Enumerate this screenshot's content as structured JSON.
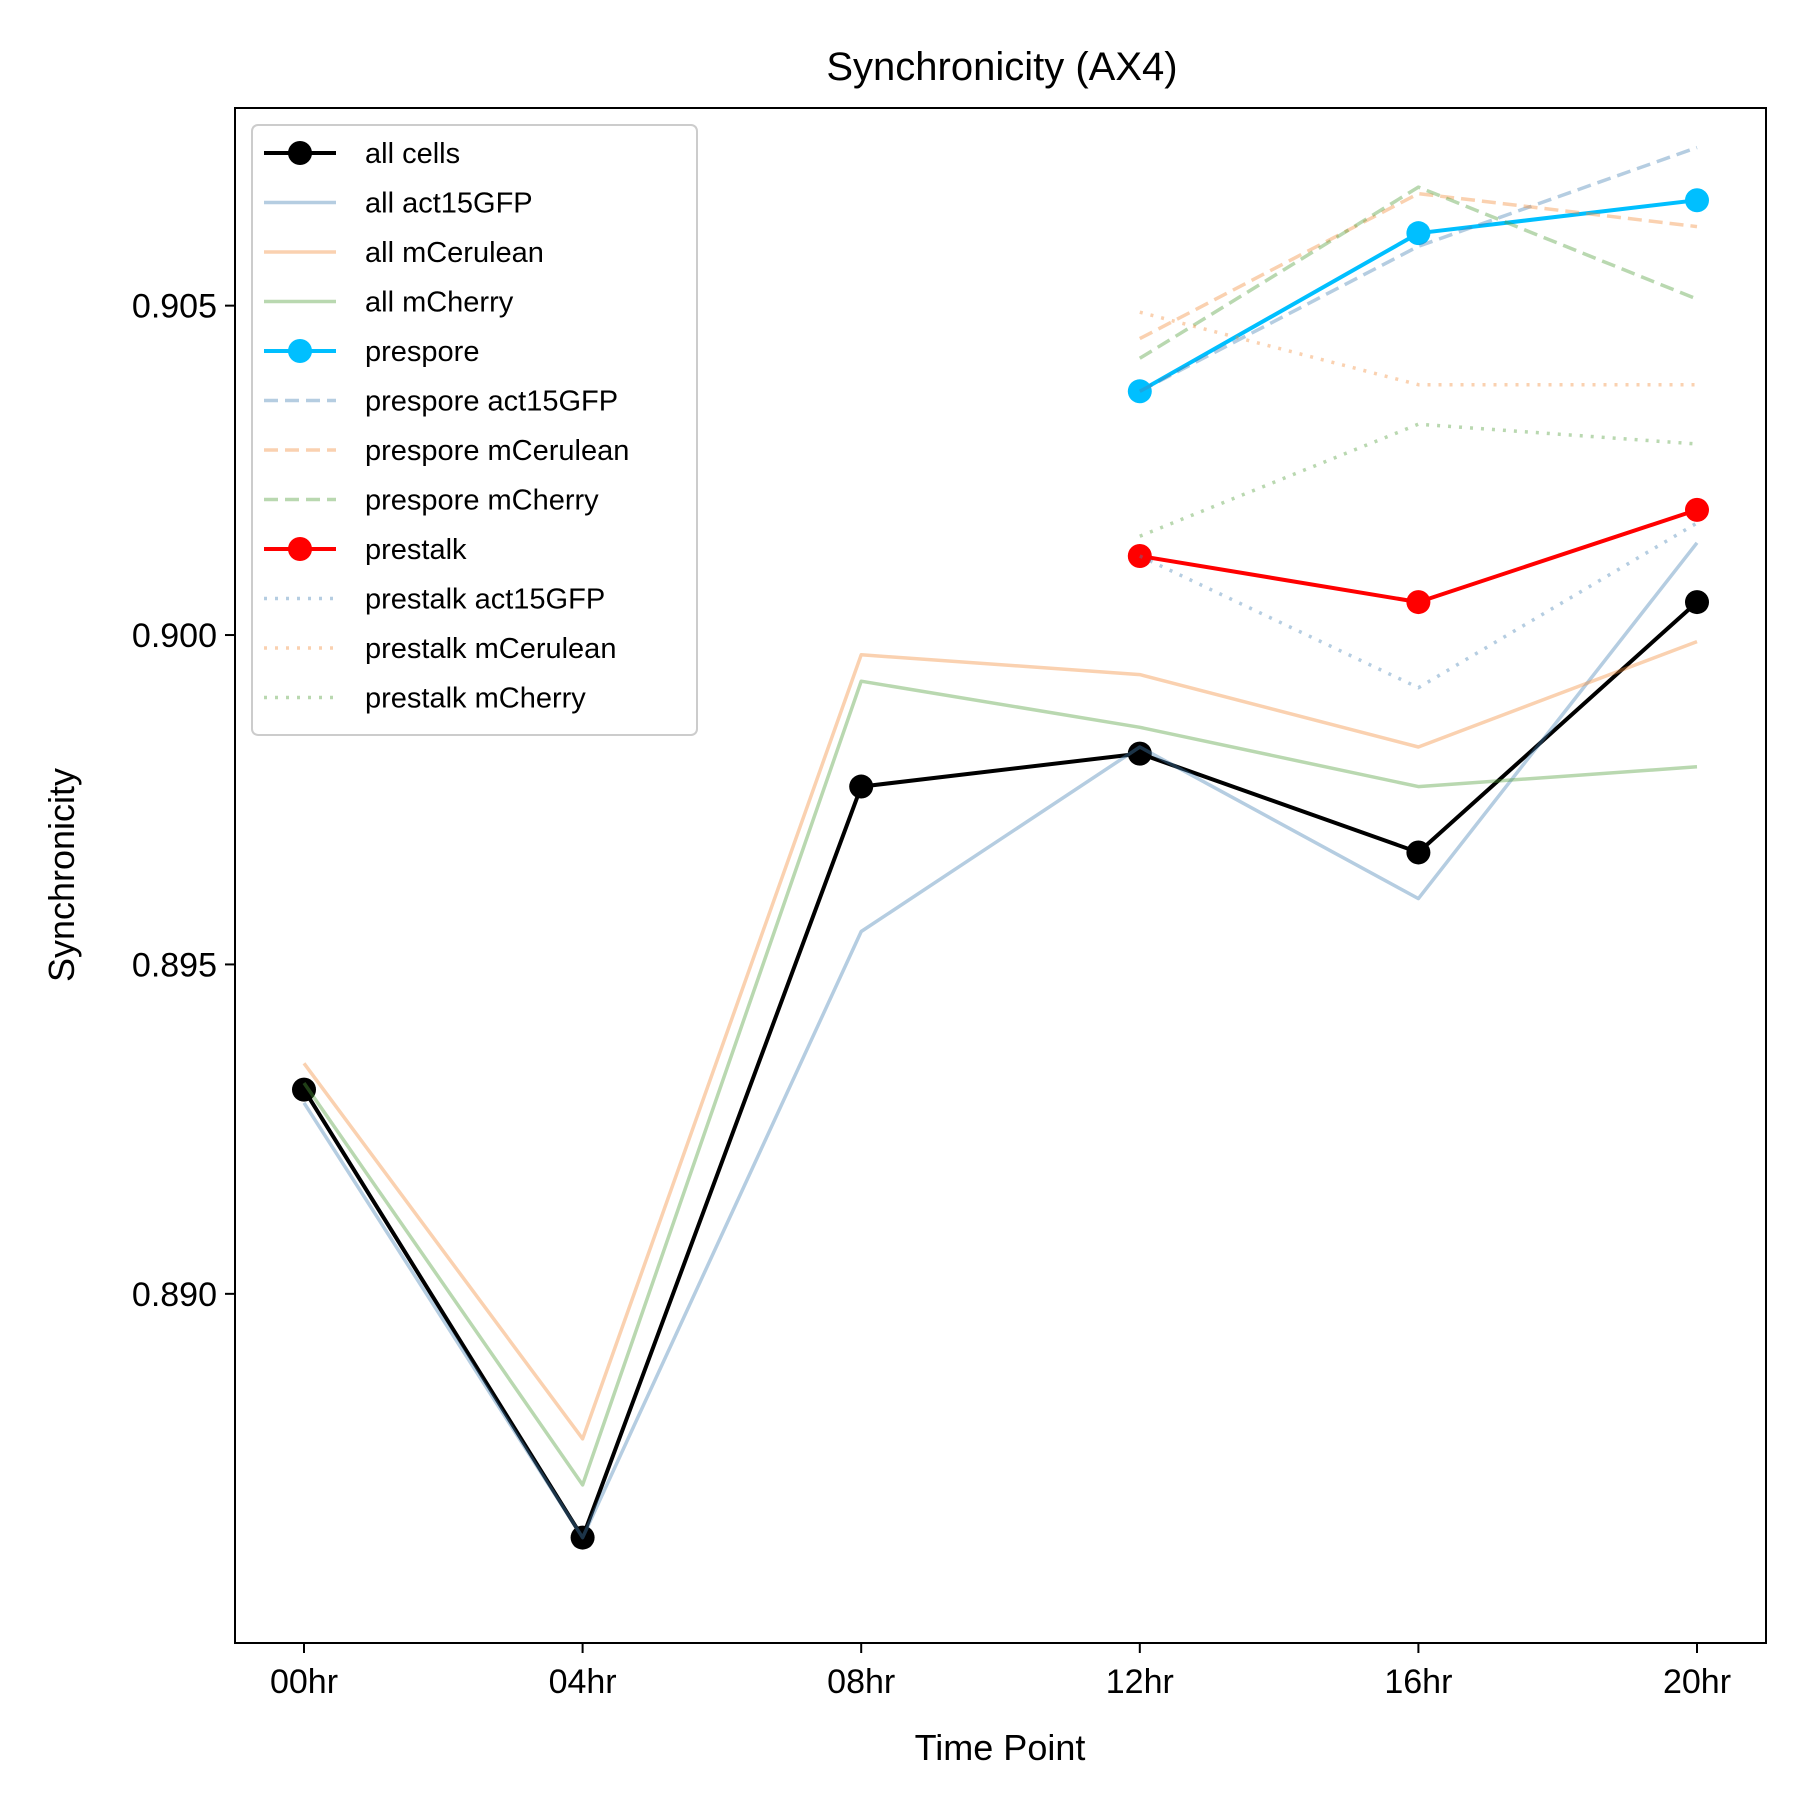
{
  "chart_data": {
    "type": "line",
    "title": "Synchronicity (AX4)",
    "xlabel": "Time Point",
    "ylabel": "Synchronicity",
    "categories": [
      "00hr",
      "04hr",
      "08hr",
      "12hr",
      "16hr",
      "20hr"
    ],
    "ylim": [
      0.8847,
      0.908
    ],
    "yticks": [
      0.89,
      0.895,
      0.9,
      0.905
    ],
    "ytick_labels": [
      "0.890",
      "0.895",
      "0.900",
      "0.905"
    ],
    "grid": false,
    "legend_position": "top-left",
    "series": [
      {
        "name": "all cells",
        "color": "#000000",
        "style": "solid",
        "marker": true,
        "alpha": 1,
        "values": [
          0.8931,
          0.8863,
          0.8977,
          0.8982,
          0.8967,
          0.9005
        ]
      },
      {
        "name": "all act15GFP",
        "color": "#4682b4",
        "style": "solid",
        "marker": false,
        "alpha": 0.4,
        "values": [
          0.8929,
          0.8863,
          0.8955,
          0.8983,
          0.896,
          0.9014
        ]
      },
      {
        "name": "all mCerulean",
        "color": "#f28c3a",
        "style": "solid",
        "marker": false,
        "alpha": 0.4,
        "values": [
          0.8935,
          0.8878,
          0.8997,
          0.8994,
          0.8983,
          0.8999
        ]
      },
      {
        "name": "all mCherry",
        "color": "#4f9e3a",
        "style": "solid",
        "marker": false,
        "alpha": 0.4,
        "values": [
          0.8932,
          0.8871,
          0.8993,
          0.8986,
          0.8977,
          0.898
        ]
      },
      {
        "name": "prespore",
        "color": "#00bfff",
        "style": "solid",
        "marker": true,
        "alpha": 1,
        "values": [
          null,
          null,
          null,
          0.9037,
          0.9061,
          0.9066
        ]
      },
      {
        "name": "prespore act15GFP",
        "color": "#4682b4",
        "style": "dashed",
        "marker": false,
        "alpha": 0.4,
        "values": [
          null,
          null,
          null,
          0.9037,
          0.9059,
          0.9074
        ]
      },
      {
        "name": "prespore mCerulean",
        "color": "#f28c3a",
        "style": "dashed",
        "marker": false,
        "alpha": 0.4,
        "values": [
          null,
          null,
          null,
          0.9045,
          0.9067,
          0.9062
        ]
      },
      {
        "name": "prespore mCherry",
        "color": "#4f9e3a",
        "style": "dashed",
        "marker": false,
        "alpha": 0.4,
        "values": [
          null,
          null,
          null,
          0.9042,
          0.9068,
          0.9051
        ]
      },
      {
        "name": "prestalk",
        "color": "#ff0000",
        "style": "solid",
        "marker": true,
        "alpha": 1,
        "values": [
          null,
          null,
          null,
          0.9012,
          0.9005,
          0.9019
        ]
      },
      {
        "name": "prestalk act15GFP",
        "color": "#4682b4",
        "style": "dotted",
        "marker": false,
        "alpha": 0.4,
        "values": [
          null,
          null,
          null,
          0.9012,
          0.8992,
          0.9017
        ]
      },
      {
        "name": "prestalk mCerulean",
        "color": "#f28c3a",
        "style": "dotted",
        "marker": false,
        "alpha": 0.4,
        "values": [
          null,
          null,
          null,
          0.9049,
          0.9038,
          0.9038
        ]
      },
      {
        "name": "prestalk mCherry",
        "color": "#4f9e3a",
        "style": "dotted",
        "marker": false,
        "alpha": 0.4,
        "values": [
          null,
          null,
          null,
          0.9015,
          0.9032,
          0.9029
        ]
      }
    ]
  }
}
